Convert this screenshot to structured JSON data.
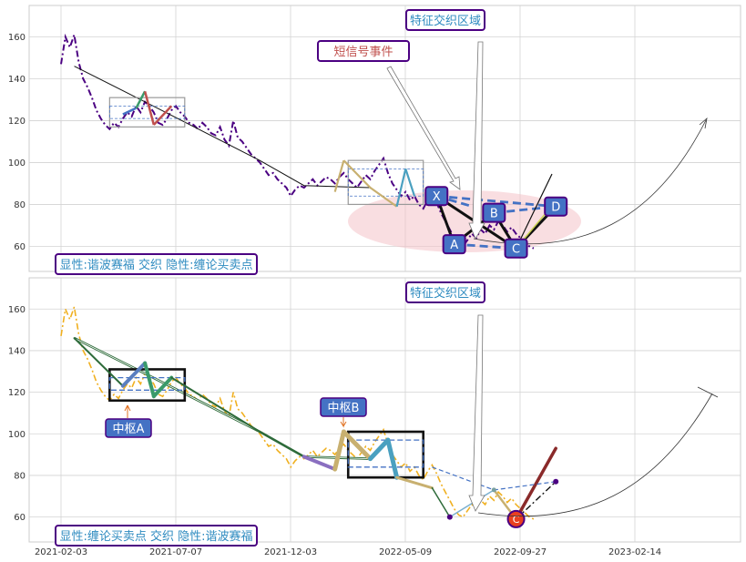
{
  "chart_data": [
    {
      "type": "line",
      "panel": "top",
      "x_ticks": [
        "2021-02-03",
        "2021-07-07",
        "2021-12-03",
        "2022-05-09",
        "2022-09-27",
        "2023-02-14"
      ],
      "y_ticks": [
        60,
        80,
        100,
        120,
        140,
        160
      ],
      "ylim": [
        48,
        175
      ],
      "grid": true,
      "price_series": {
        "color": "#4b0082",
        "style": "dash-dot",
        "points": [
          [
            0,
            147
          ],
          [
            1,
            160
          ],
          [
            2,
            155
          ],
          [
            3,
            161
          ],
          [
            4,
            148
          ],
          [
            5,
            140
          ],
          [
            6,
            136
          ],
          [
            7,
            131
          ],
          [
            8,
            125
          ],
          [
            9,
            121
          ],
          [
            10,
            118
          ],
          [
            11,
            116
          ],
          [
            12,
            119
          ],
          [
            13,
            117
          ],
          [
            14,
            121
          ],
          [
            15,
            124
          ],
          [
            16,
            122
          ],
          [
            17,
            127
          ],
          [
            18,
            124
          ],
          [
            19,
            129
          ],
          [
            20,
            127
          ],
          [
            21,
            124
          ],
          [
            22,
            119
          ],
          [
            23,
            118
          ],
          [
            24,
            121
          ],
          [
            25,
            125
          ],
          [
            26,
            127
          ],
          [
            27,
            124
          ],
          [
            28,
            122
          ],
          [
            29,
            119
          ],
          [
            30,
            118
          ],
          [
            31,
            116
          ],
          [
            32,
            119
          ],
          [
            33,
            117
          ],
          [
            34,
            114
          ],
          [
            35,
            113
          ],
          [
            36,
            117
          ],
          [
            37,
            111
          ],
          [
            38,
            108
          ],
          [
            39,
            120
          ],
          [
            40,
            112
          ],
          [
            41,
            110
          ],
          [
            42,
            107
          ],
          [
            43,
            104
          ],
          [
            44,
            102
          ],
          [
            45,
            100
          ],
          [
            46,
            97
          ],
          [
            47,
            94
          ],
          [
            48,
            95
          ],
          [
            49,
            92
          ],
          [
            50,
            90
          ],
          [
            51,
            88
          ],
          [
            52,
            84
          ],
          [
            53,
            87
          ],
          [
            54,
            89
          ],
          [
            55,
            88
          ],
          [
            56,
            90
          ],
          [
            57,
            92
          ],
          [
            58,
            89
          ],
          [
            59,
            91
          ],
          [
            60,
            93
          ],
          [
            61,
            92
          ],
          [
            62,
            90
          ],
          [
            63,
            93
          ],
          [
            64,
            95
          ],
          [
            65,
            92
          ],
          [
            66,
            90
          ],
          [
            67,
            88
          ],
          [
            68,
            91
          ],
          [
            69,
            94
          ],
          [
            70,
            92
          ],
          [
            71,
            96
          ],
          [
            72,
            99
          ],
          [
            73,
            102
          ],
          [
            74,
            95
          ],
          [
            75,
            90
          ],
          [
            76,
            87
          ],
          [
            77,
            84
          ],
          [
            78,
            86
          ],
          [
            79,
            82
          ],
          [
            80,
            84
          ],
          [
            81,
            80
          ],
          [
            82,
            78
          ],
          [
            83,
            82
          ],
          [
            84,
            85
          ],
          [
            85,
            81
          ],
          [
            86,
            76
          ],
          [
            87,
            72
          ],
          [
            88,
            68
          ],
          [
            89,
            64
          ],
          [
            90,
            61
          ],
          [
            91,
            60
          ],
          [
            92,
            63
          ],
          [
            93,
            66
          ],
          [
            94,
            64
          ],
          [
            95,
            68
          ],
          [
            96,
            66
          ],
          [
            97,
            70
          ],
          [
            98,
            68
          ],
          [
            99,
            72
          ],
          [
            100,
            70
          ],
          [
            101,
            67
          ],
          [
            102,
            69
          ],
          [
            103,
            66
          ],
          [
            104,
            64
          ],
          [
            105,
            62
          ],
          [
            106,
            60
          ],
          [
            107,
            59
          ]
        ]
      },
      "trend_line": [
        [
          3,
          146
        ],
        [
          19,
          129
        ],
        [
          45,
          101
        ],
        [
          55,
          89
        ],
        [
          70,
          88
        ]
      ],
      "zhongshu_boxes": [
        {
          "x0": 11,
          "x1": 28,
          "y0": 117,
          "y1": 131
        },
        {
          "x0": 65,
          "x1": 82,
          "y0": 80,
          "y1": 101
        }
      ],
      "wave_segments": [
        [
          14,
          123
        ],
        [
          17,
          126
        ],
        [
          19,
          134
        ],
        [
          21,
          118
        ],
        [
          25,
          127
        ]
      ],
      "harmonic_points": [
        {
          "label": "X",
          "x": 85,
          "y": 84
        },
        {
          "label": "A",
          "x": 89,
          "y": 61
        },
        {
          "label": "B",
          "x": 98,
          "y": 76
        },
        {
          "label": "C",
          "x": 103,
          "y": 59
        },
        {
          "label": "D",
          "x": 112,
          "y": 79
        }
      ],
      "annotations": {
        "top_callout": "特征交织区域",
        "short_signal": "短信号事件",
        "legend_box": "显性:谐波赛福 交织 隐性:缠论买卖点"
      }
    },
    {
      "type": "line",
      "panel": "bottom",
      "x_ticks": [
        "2021-02-03",
        "2021-07-07",
        "2021-12-03",
        "2022-05-09",
        "2022-09-27",
        "2023-02-14"
      ],
      "y_ticks": [
        60,
        80,
        100,
        120,
        140,
        160
      ],
      "ylim": [
        48,
        175
      ],
      "grid": true,
      "price_series": {
        "color": "#f0b020",
        "style": "dash-dot"
      },
      "zhongshu_boxes": [
        {
          "label": "中枢A",
          "x0": 11,
          "x1": 28,
          "y0": 116,
          "y1": 131
        },
        {
          "label": "中枢B",
          "x0": 65,
          "x1": 82,
          "y0": 79,
          "y1": 101
        }
      ],
      "bi_points": [
        [
          3,
          146
        ],
        [
          14,
          123
        ],
        [
          19,
          134
        ],
        [
          21,
          118
        ],
        [
          25,
          127
        ],
        [
          45,
          101
        ],
        [
          55,
          89
        ],
        [
          62,
          83
        ],
        [
          64,
          101
        ],
        [
          70,
          88
        ],
        [
          74,
          97
        ],
        [
          76,
          79
        ],
        [
          84,
          74
        ],
        [
          88,
          60
        ],
        [
          98,
          73
        ],
        [
          103,
          59
        ],
        [
          112,
          93
        ]
      ],
      "buy_point": {
        "label": "C",
        "x": 103,
        "y": 59
      },
      "annotations": {
        "top_callout": "特征交织区域",
        "zs_a": "中枢A",
        "zs_b": "中枢B",
        "legend_box": "显性:缠论买卖点 交织 隐性:谐波赛福"
      }
    }
  ]
}
